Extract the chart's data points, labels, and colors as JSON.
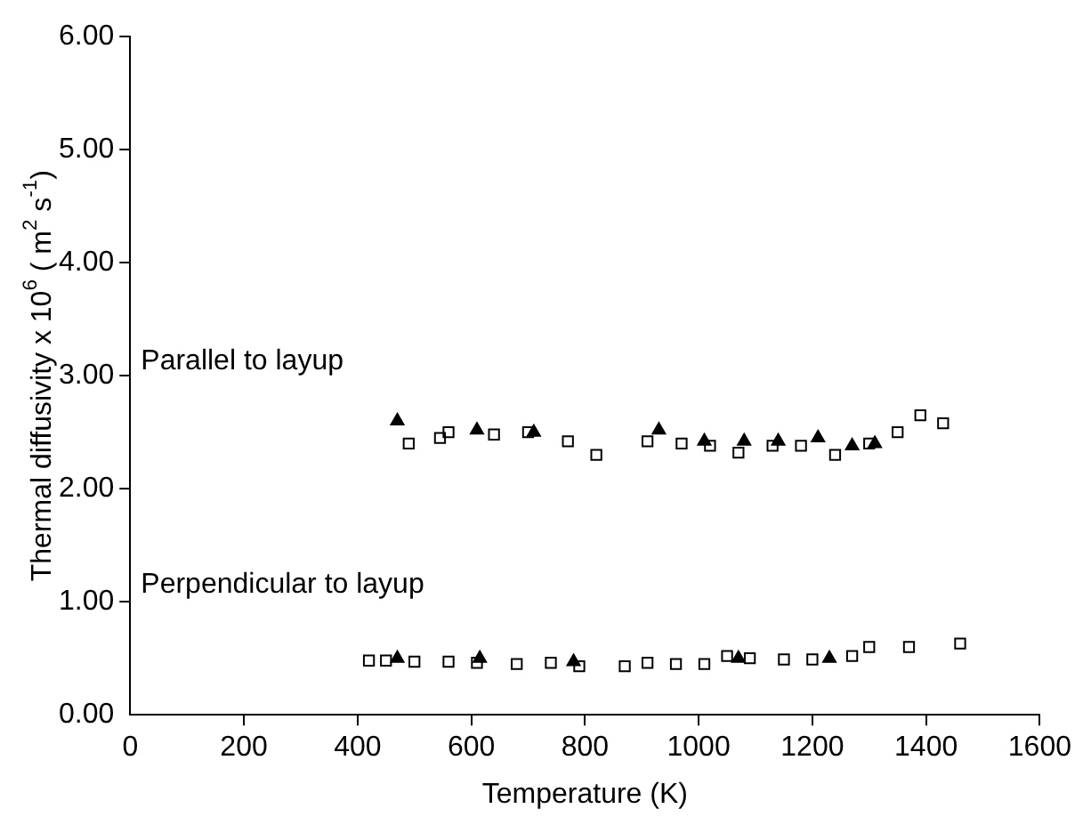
{
  "chart_data": {
    "type": "scatter",
    "xlabel": "Temperature (K)",
    "ylabel": "Thermal diffusivity x 10$^{6}$ ( m$^{2}$ s$^{-1}$)",
    "xlim": [
      0,
      1600
    ],
    "xticks": [
      0,
      200,
      400,
      600,
      800,
      1000,
      1200,
      1400,
      1600
    ],
    "ylim": [
      0,
      6
    ],
    "yticks": [
      {
        "value": 0,
        "label": "0.00"
      },
      {
        "value": 1,
        "label": "1.00"
      },
      {
        "value": 2,
        "label": "2.00"
      },
      {
        "value": 3,
        "label": "3.00"
      },
      {
        "value": 4,
        "label": "4.00"
      },
      {
        "value": 5,
        "label": "5.00"
      },
      {
        "value": 6,
        "label": "6.00"
      }
    ],
    "grid": false,
    "legend": false,
    "series": [
      {
        "color": "#000000",
        "marker": "square",
        "x": [
          490,
          545,
          560,
          640,
          700,
          770,
          820,
          910,
          970,
          1020,
          1070,
          1130,
          1180,
          1240,
          1300,
          1350,
          1390,
          1430
        ],
        "values": [
          2.4,
          2.45,
          2.5,
          2.48,
          2.5,
          2.42,
          2.3,
          2.42,
          2.4,
          2.38,
          2.32,
          2.38,
          2.38,
          2.3,
          2.4,
          2.5,
          2.65,
          2.58
        ]
      },
      {
        "color": "#000000",
        "marker": "triangle",
        "x": [
          470,
          610,
          710,
          930,
          1010,
          1080,
          1140,
          1210,
          1270,
          1310
        ],
        "values": [
          2.6,
          2.52,
          2.5,
          2.52,
          2.42,
          2.42,
          2.42,
          2.45,
          2.38,
          2.4
        ]
      },
      {
        "color": "#000000",
        "marker": "square",
        "x": [
          420,
          450,
          500,
          560,
          610,
          680,
          740,
          790,
          870,
          910,
          960,
          1010,
          1050,
          1090,
          1150,
          1200,
          1270,
          1300,
          1370,
          1460
        ],
        "values": [
          0.48,
          0.48,
          0.47,
          0.47,
          0.46,
          0.45,
          0.46,
          0.43,
          0.43,
          0.46,
          0.45,
          0.45,
          0.52,
          0.5,
          0.49,
          0.49,
          0.52,
          0.6,
          0.6,
          0.63
        ]
      },
      {
        "color": "#000000",
        "marker": "triangle",
        "x": [
          470,
          615,
          780,
          1070,
          1230
        ],
        "values": [
          0.5,
          0.5,
          0.47,
          0.5,
          0.5
        ]
      }
    ],
    "annotations": [
      "Parallel to layup",
      "Perpendicular to layup"
    ]
  }
}
